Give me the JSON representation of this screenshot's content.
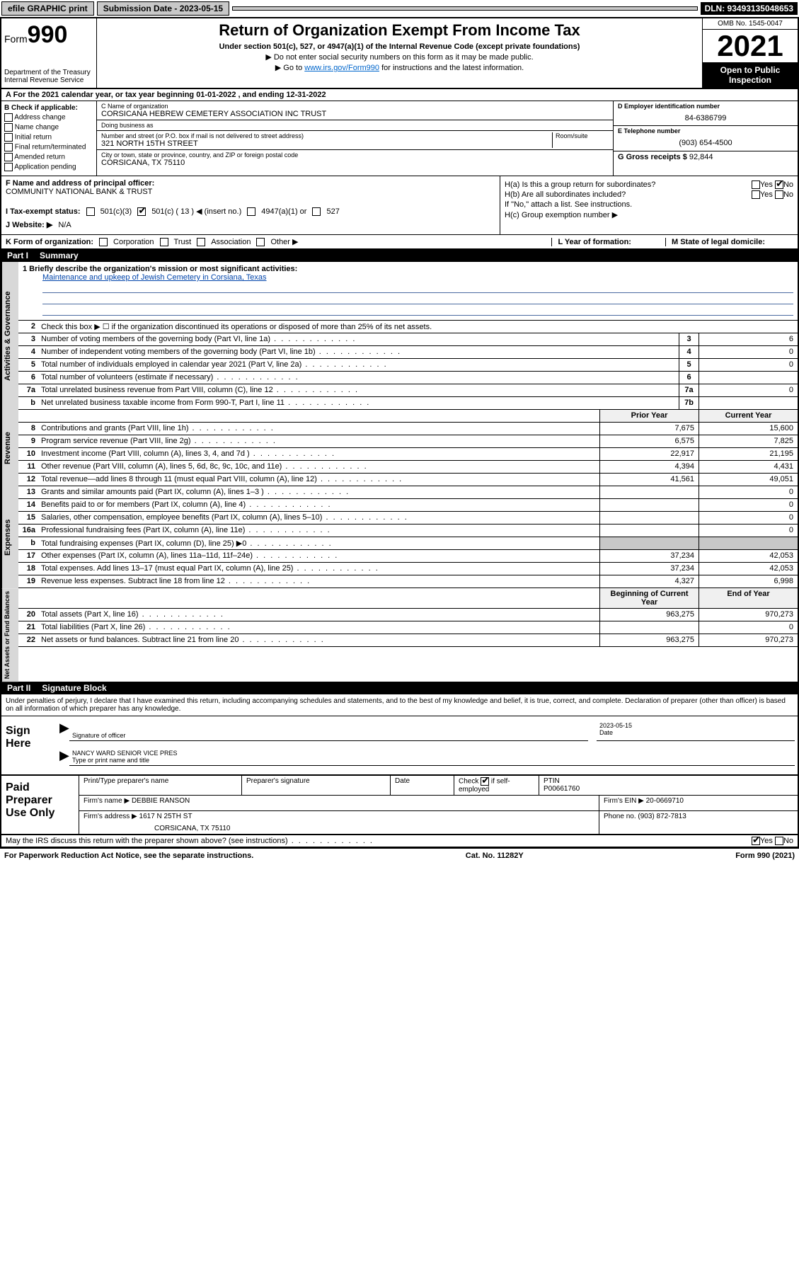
{
  "topbar": {
    "efile": "efile GRAPHIC print",
    "submission_label": "Submission Date - 2023-05-15",
    "dln": "DLN: 93493135048653"
  },
  "header": {
    "form_word": "Form",
    "form_num": "990",
    "title": "Return of Organization Exempt From Income Tax",
    "subtitle": "Under section 501(c), 527, or 4947(a)(1) of the Internal Revenue Code (except private foundations)",
    "note1": "▶ Do not enter social security numbers on this form as it may be made public.",
    "note2_pre": "▶ Go to ",
    "note2_link": "www.irs.gov/Form990",
    "note2_post": " for instructions and the latest information.",
    "dept": "Department of the Treasury",
    "irs": "Internal Revenue Service",
    "omb": "OMB No. 1545-0047",
    "year": "2021",
    "inspection": "Open to Public Inspection"
  },
  "row_a": "A For the 2021 calendar year, or tax year beginning 01-01-2022   , and ending 12-31-2022",
  "col_b": {
    "header": "B Check if applicable:",
    "items": [
      "Address change",
      "Name change",
      "Initial return",
      "Final return/terminated",
      "Amended return",
      "Application pending"
    ]
  },
  "col_c": {
    "name_lbl": "C Name of organization",
    "name": "CORSICANA HEBREW CEMETERY ASSOCIATION INC TRUST",
    "dba_lbl": "Doing business as",
    "dba": "",
    "addr_lbl": "Number and street (or P.O. box if mail is not delivered to street address)",
    "room_lbl": "Room/suite",
    "addr": "321 NORTH 15TH STREET",
    "city_lbl": "City or town, state or province, country, and ZIP or foreign postal code",
    "city": "CORSICANA, TX  75110"
  },
  "col_d": {
    "ein_lbl": "D Employer identification number",
    "ein": "84-6386799",
    "phone_lbl": "E Telephone number",
    "phone": "(903) 654-4500",
    "gross_lbl": "G Gross receipts $",
    "gross": "92,844"
  },
  "section_f": {
    "lbl": "F Name and address of principal officer:",
    "val": "COMMUNITY NATIONAL BANK & TRUST"
  },
  "section_h": {
    "ha": "H(a)  Is this a group return for subordinates?",
    "ha_ans_yes": "Yes",
    "ha_ans_no": "No",
    "hb": "H(b)  Are all subordinates included?",
    "hb_note": "If \"No,\" attach a list. See instructions.",
    "hc": "H(c)  Group exemption number ▶"
  },
  "row_i": {
    "lbl": "I   Tax-exempt status:",
    "opt1": "501(c)(3)",
    "opt2": "501(c) ( 13 ) ◀ (insert no.)",
    "opt3": "4947(a)(1) or",
    "opt4": "527"
  },
  "row_j": {
    "lbl": "J   Website: ▶",
    "val": "N/A"
  },
  "row_k": {
    "lbl": "K Form of organization:",
    "opts": [
      "Corporation",
      "Trust",
      "Association",
      "Other ▶"
    ],
    "l_lbl": "L Year of formation:",
    "m_lbl": "M State of legal domicile:"
  },
  "part1": {
    "label": "Part I",
    "title": "Summary"
  },
  "mission": {
    "q1": "1   Briefly describe the organization's mission or most significant activities:",
    "text": "Maintenance and upkeep of Jewish Cemetery in Corsiana, Texas"
  },
  "summary_lines": {
    "l2": "Check this box ▶ ☐  if the organization discontinued its operations or disposed of more than 25% of its net assets.",
    "l3": {
      "desc": "Number of voting members of the governing body (Part VI, line 1a)",
      "box": "3",
      "val": "6"
    },
    "l4": {
      "desc": "Number of independent voting members of the governing body (Part VI, line 1b)",
      "box": "4",
      "val": "0"
    },
    "l5": {
      "desc": "Total number of individuals employed in calendar year 2021 (Part V, line 2a)",
      "box": "5",
      "val": "0"
    },
    "l6": {
      "desc": "Total number of volunteers (estimate if necessary)",
      "box": "6",
      "val": ""
    },
    "l7a": {
      "desc": "Total unrelated business revenue from Part VIII, column (C), line 12",
      "box": "7a",
      "val": "0"
    },
    "l7b": {
      "desc": "Net unrelated business taxable income from Form 990-T, Part I, line 11",
      "box": "7b",
      "val": ""
    }
  },
  "revenue_head": {
    "prior": "Prior Year",
    "current": "Current Year"
  },
  "revenue": [
    {
      "n": "8",
      "desc": "Contributions and grants (Part VIII, line 1h)",
      "prior": "7,675",
      "curr": "15,600"
    },
    {
      "n": "9",
      "desc": "Program service revenue (Part VIII, line 2g)",
      "prior": "6,575",
      "curr": "7,825"
    },
    {
      "n": "10",
      "desc": "Investment income (Part VIII, column (A), lines 3, 4, and 7d )",
      "prior": "22,917",
      "curr": "21,195"
    },
    {
      "n": "11",
      "desc": "Other revenue (Part VIII, column (A), lines 5, 6d, 8c, 9c, 10c, and 11e)",
      "prior": "4,394",
      "curr": "4,431"
    },
    {
      "n": "12",
      "desc": "Total revenue—add lines 8 through 11 (must equal Part VIII, column (A), line 12)",
      "prior": "41,561",
      "curr": "49,051"
    }
  ],
  "expenses": [
    {
      "n": "13",
      "desc": "Grants and similar amounts paid (Part IX, column (A), lines 1–3 )",
      "prior": "",
      "curr": "0"
    },
    {
      "n": "14",
      "desc": "Benefits paid to or for members (Part IX, column (A), line 4)",
      "prior": "",
      "curr": "0"
    },
    {
      "n": "15",
      "desc": "Salaries, other compensation, employee benefits (Part IX, column (A), lines 5–10)",
      "prior": "",
      "curr": "0"
    },
    {
      "n": "16a",
      "desc": "Professional fundraising fees (Part IX, column (A), line 11e)",
      "prior": "",
      "curr": "0"
    },
    {
      "n": "b",
      "desc": "Total fundraising expenses (Part IX, column (D), line 25) ▶0",
      "prior": "GREY",
      "curr": "GREY"
    },
    {
      "n": "17",
      "desc": "Other expenses (Part IX, column (A), lines 11a–11d, 11f–24e)",
      "prior": "37,234",
      "curr": "42,053"
    },
    {
      "n": "18",
      "desc": "Total expenses. Add lines 13–17 (must equal Part IX, column (A), line 25)",
      "prior": "37,234",
      "curr": "42,053"
    },
    {
      "n": "19",
      "desc": "Revenue less expenses. Subtract line 18 from line 12",
      "prior": "4,327",
      "curr": "6,998"
    }
  ],
  "netassets_head": {
    "prior": "Beginning of Current Year",
    "current": "End of Year"
  },
  "netassets": [
    {
      "n": "20",
      "desc": "Total assets (Part X, line 16)",
      "prior": "963,275",
      "curr": "970,273"
    },
    {
      "n": "21",
      "desc": "Total liabilities (Part X, line 26)",
      "prior": "",
      "curr": "0"
    },
    {
      "n": "22",
      "desc": "Net assets or fund balances. Subtract line 21 from line 20",
      "prior": "963,275",
      "curr": "970,273"
    }
  ],
  "part2": {
    "label": "Part II",
    "title": "Signature Block"
  },
  "sig": {
    "declare": "Under penalties of perjury, I declare that I have examined this return, including accompanying schedules and statements, and to the best of my knowledge and belief, it is true, correct, and complete. Declaration of preparer (other than officer) is based on all information of which preparer has any knowledge.",
    "sign_here": "Sign Here",
    "sig_officer_lbl": "Signature of officer",
    "date_lbl": "Date",
    "date": "2023-05-15",
    "name": "NANCY WARD  SENIOR VICE PRES",
    "name_lbl": "Type or print name and title"
  },
  "prep": {
    "title": "Paid Preparer Use Only",
    "h1": "Print/Type preparer's name",
    "h2": "Preparer's signature",
    "h3": "Date",
    "h4_lbl": "Check",
    "h4_txt": "if self-employed",
    "h5_lbl": "PTIN",
    "h5_val": "P00661760",
    "firm_name_lbl": "Firm's name    ▶",
    "firm_name": "DEBBIE RANSON",
    "firm_ein_lbl": "Firm's EIN ▶",
    "firm_ein": "20-0669710",
    "firm_addr_lbl": "Firm's address ▶",
    "firm_addr1": "1617 N 25TH ST",
    "firm_addr2": "CORSICANA, TX  75110",
    "phone_lbl": "Phone no.",
    "phone": "(903) 872-7813"
  },
  "footer": {
    "discuss": "May the IRS discuss this return with the preparer shown above? (see instructions)",
    "yes": "Yes",
    "no": "No",
    "paperwork": "For Paperwork Reduction Act Notice, see the separate instructions.",
    "cat": "Cat. No. 11282Y",
    "formref": "Form 990 (2021)"
  },
  "vtabs": {
    "gov": "Activities & Governance",
    "rev": "Revenue",
    "exp": "Expenses",
    "net": "Net Assets or Fund Balances"
  }
}
